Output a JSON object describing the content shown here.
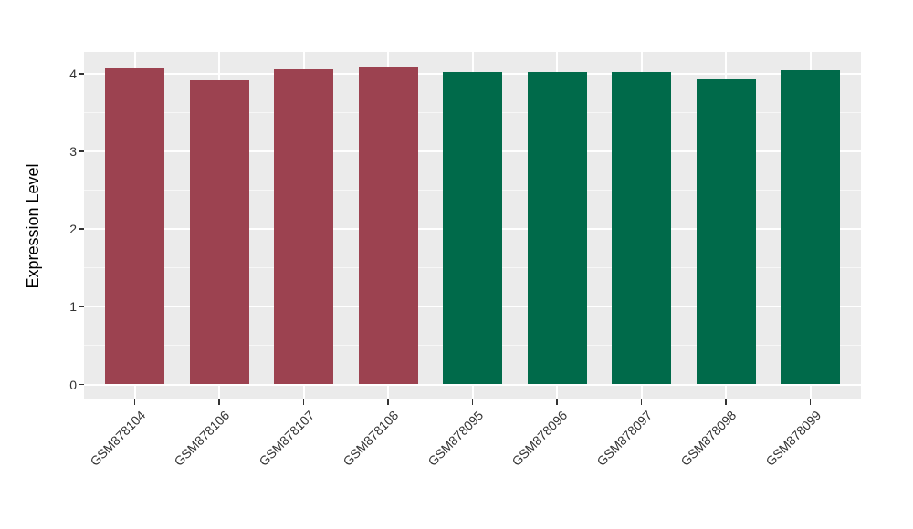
{
  "figure": {
    "background": "#FFFFFF"
  },
  "chart_data": {
    "type": "bar",
    "title": "",
    "xlabel": "",
    "ylabel": "Expression Level",
    "categories": [
      "GSM878104",
      "GSM878106",
      "GSM878107",
      "GSM878108",
      "GSM878095",
      "GSM878096",
      "GSM878097",
      "GSM878098",
      "GSM878099"
    ],
    "values": [
      4.07,
      3.92,
      4.06,
      4.09,
      4.03,
      4.03,
      4.03,
      3.93,
      4.05
    ],
    "bar_colors": [
      "#9C4250",
      "#9C4250",
      "#9C4250",
      "#9C4250",
      "#006A4A",
      "#006A4A",
      "#006A4A",
      "#006A4A",
      "#006A4A"
    ],
    "palette": {
      "group_red": "#9C4250",
      "group_green": "#006A4A"
    },
    "y_ticks": [
      0,
      1,
      2,
      3,
      4
    ],
    "y_minor_ticks": [
      0.5,
      1.5,
      2.5,
      3.5
    ],
    "ylim": [
      -0.2,
      4.29
    ],
    "bar_width_fraction": 0.7,
    "panel_background": "#EBEBEB",
    "grid_major_color": "#FFFFFF",
    "grid_minor_color": "rgba(255,255,255,0.6)",
    "axis_text_color": "#333333",
    "tick_mark_color": "#333333",
    "legend": "none"
  }
}
